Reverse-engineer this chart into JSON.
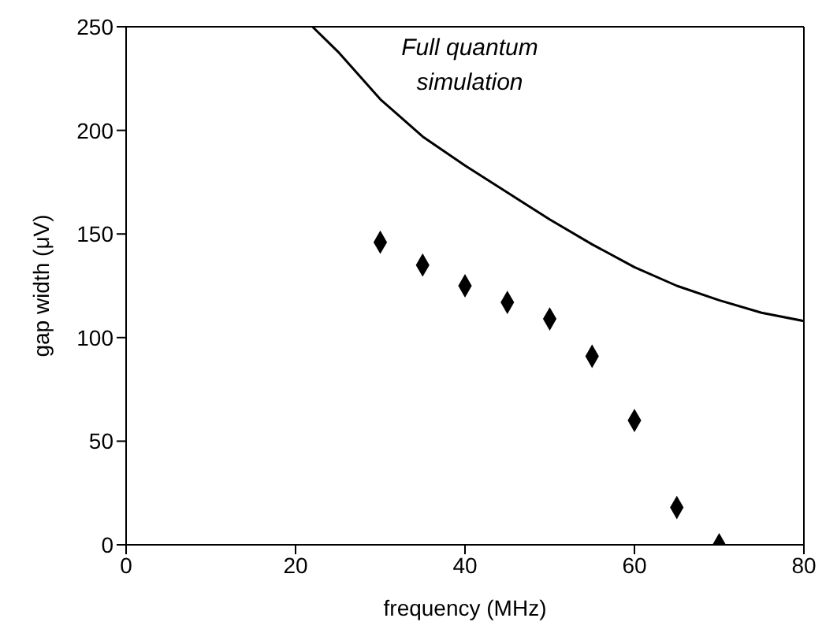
{
  "chart_data": {
    "type": "scatter",
    "xlabel": "frequency (MHz)",
    "ylabel": "gap width (μV)",
    "xlim": [
      0,
      80
    ],
    "ylim": [
      0,
      250
    ],
    "xticks": [
      0,
      20,
      40,
      60,
      80
    ],
    "yticks": [
      0,
      50,
      100,
      150,
      200,
      250
    ],
    "annotations": [
      "Full quantum simulation"
    ],
    "series": [
      {
        "type": "line",
        "color": "#000000",
        "marker": "none",
        "x": [
          22,
          25,
          30,
          35,
          40,
          45,
          50,
          55,
          60,
          65,
          70,
          75,
          80
        ],
        "values": [
          250,
          238,
          215,
          197,
          183,
          170,
          157,
          145,
          134,
          125,
          118,
          112,
          108
        ]
      },
      {
        "color": "#000000",
        "marker": "diamond",
        "x": [
          30,
          35,
          40,
          45,
          50,
          55,
          60,
          65,
          70
        ],
        "values": [
          146,
          135,
          125,
          117,
          109,
          91,
          60,
          18,
          0
        ]
      }
    ]
  }
}
